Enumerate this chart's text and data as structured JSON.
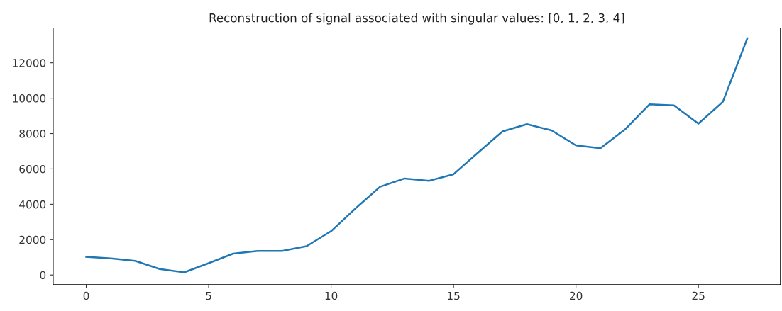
{
  "chart_data": {
    "type": "line",
    "title": "Reconstruction of signal associated with singular values: [0, 1, 2, 3, 4]",
    "x": [
      0,
      1,
      2,
      3,
      4,
      5,
      6,
      7,
      8,
      9,
      10,
      11,
      12,
      13,
      14,
      15,
      16,
      17,
      18,
      19,
      20,
      21,
      22,
      23,
      24,
      25,
      26,
      27
    ],
    "series": [
      {
        "color": "#1f77b4",
        "values": [
          1030,
          940,
          800,
          340,
          150,
          670,
          1210,
          1360,
          1360,
          1630,
          2480,
          3770,
          4990,
          5460,
          5330,
          5700,
          6920,
          8120,
          8530,
          8180,
          7330,
          7170,
          8230,
          9650,
          9590,
          8560,
          9800,
          13390
        ]
      }
    ],
    "xlim": [
      -1.35,
      28.35
    ],
    "xticks": [
      0,
      5,
      10,
      15,
      20,
      25
    ],
    "ylim": [
      -540,
      13970
    ],
    "yticks": [
      0,
      2000,
      4000,
      6000,
      8000,
      10000,
      12000
    ],
    "grid": false
  }
}
